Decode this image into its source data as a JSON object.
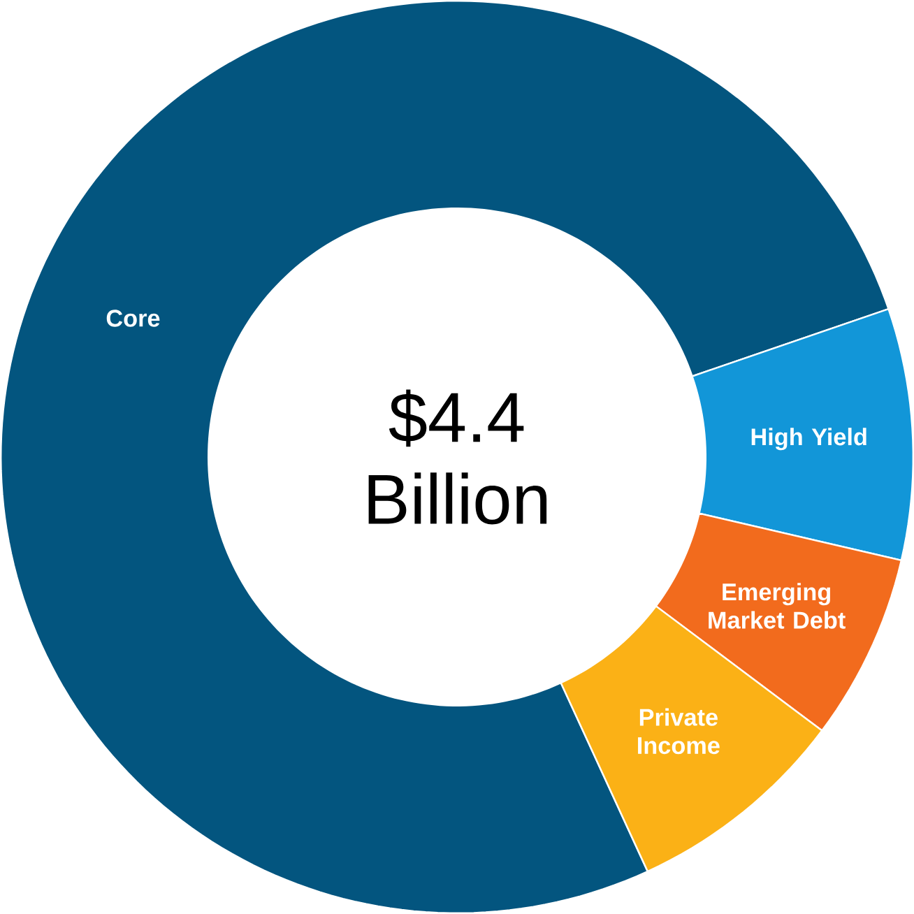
{
  "chart_data": {
    "type": "donut",
    "categories": [
      "Core",
      "High Yield",
      "Emerging Market Debt",
      "Private Income"
    ],
    "values": [
      76.6,
      8.9,
      6.6,
      7.9
    ],
    "colors": [
      "#03557f",
      "#1296d8",
      "#f26b1d",
      "#fbb116"
    ],
    "annotations": [
      "$4.4 Billion"
    ]
  }
}
